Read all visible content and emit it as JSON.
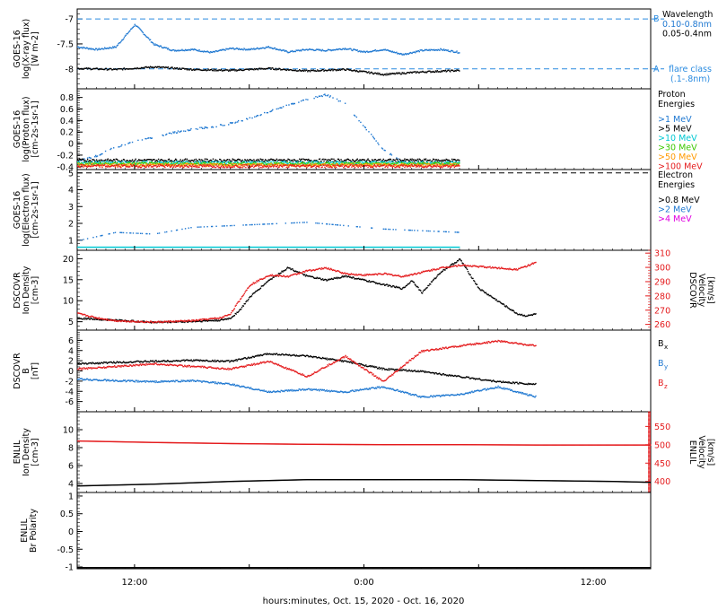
{
  "colors": {
    "black": "#000000",
    "blue": "#1f78d1",
    "red": "#e41a1c",
    "cyan": "#00c8d2",
    "green": "#3cc800",
    "orange": "#ff9a00",
    "magenta": "#e000e0",
    "dash_blue": "#2a8be0"
  },
  "xaxis": {
    "ticks": [
      "12:00",
      "0:00",
      "12:00"
    ],
    "label": "hours:minutes, Oct. 15, 2020 - Oct. 16, 2020"
  },
  "chart_data": [
    {
      "type": "scatter",
      "id": "xray",
      "ylabel": [
        "GOES-16",
        "log(X-ray flux)",
        "[W m-2]"
      ],
      "ylim": [
        -8.4,
        -6.8
      ],
      "yticks": [
        -7.0,
        -7.5,
        -8.0
      ],
      "legend_title": "Wavelength",
      "legend": [
        {
          "label": "0.10-0.8nm",
          "color": "#1f78d1"
        },
        {
          "label": "0.05-0.4nm",
          "color": "#000000"
        }
      ],
      "reference_lines": [
        {
          "value": -7.0,
          "letter": "B"
        },
        {
          "value": -8.0,
          "letter": "A",
          "label": "flare class",
          "sublabel": "(.1-.8nm)"
        }
      ],
      "series": [
        {
          "color": "#1f78d1",
          "x": [
            0,
            2,
            4,
            6,
            7,
            8,
            10,
            12,
            14,
            16,
            18,
            20,
            22,
            24,
            26,
            28,
            30,
            32,
            34,
            36,
            38,
            40
          ],
          "y": [
            -7.55,
            -7.6,
            -7.55,
            -7.1,
            -7.3,
            -7.5,
            -7.62,
            -7.6,
            -7.66,
            -7.58,
            -7.6,
            -7.55,
            -7.65,
            -7.6,
            -7.62,
            -7.58,
            -7.65,
            -7.6,
            -7.7,
            -7.62,
            -7.6,
            -7.66
          ]
        },
        {
          "color": "#000000",
          "x": [
            0,
            4,
            8,
            12,
            16,
            20,
            24,
            28,
            32,
            36,
            40
          ],
          "y": [
            -7.98,
            -8.0,
            -7.95,
            -8.0,
            -8.02,
            -7.98,
            -8.03,
            -8.0,
            -8.1,
            -8.05,
            -8.02
          ]
        }
      ]
    },
    {
      "type": "scatter",
      "id": "proton",
      "ylabel": [
        "GOES-16",
        "log(Proton flux)",
        "[cm-2s-1sr-1]"
      ],
      "ylim": [
        -0.45,
        0.95
      ],
      "yticks": [
        0.8,
        0.6,
        0.4,
        0.2,
        0.0,
        -0.2,
        -0.4
      ],
      "legend_title": "Proton Energies",
      "legend": [
        {
          "label": ">1 MeV",
          "color": "#1f78d1"
        },
        {
          "label": ">5 MeV",
          "color": "#000000"
        },
        {
          "label": ">10 MeV",
          "color": "#00c8d2"
        },
        {
          "label": ">30 MeV",
          "color": "#3cc800"
        },
        {
          "label": ">50 MeV",
          "color": "#ff9a00"
        },
        {
          "label": ">100 MeV",
          "color": "#e41a1c"
        }
      ],
      "series": [
        {
          "color": "#1f78d1",
          "x": [
            0,
            2,
            4,
            6,
            8,
            10,
            12,
            14,
            16,
            18,
            20,
            22,
            24,
            26,
            28,
            29,
            30,
            32,
            34,
            36,
            38,
            40
          ],
          "y": [
            -0.3,
            -0.2,
            -0.05,
            0.05,
            0.12,
            0.2,
            0.26,
            0.3,
            0.36,
            0.45,
            0.56,
            0.68,
            0.78,
            0.86,
            0.7,
            0.5,
            0.3,
            -0.1,
            -0.3,
            -0.35,
            -0.34,
            -0.36
          ]
        },
        {
          "color": "#000000",
          "x": [
            0,
            40
          ],
          "y": [
            -0.28,
            -0.28
          ]
        },
        {
          "color": "#00c8d2",
          "x": [
            0,
            40
          ],
          "y": [
            -0.32,
            -0.32
          ]
        },
        {
          "color": "#3cc800",
          "x": [
            0,
            40
          ],
          "y": [
            -0.34,
            -0.34
          ]
        },
        {
          "color": "#ff9a00",
          "x": [
            0,
            40
          ],
          "y": [
            -0.36,
            -0.36
          ]
        },
        {
          "color": "#e41a1c",
          "x": [
            0,
            40
          ],
          "y": [
            -0.38,
            -0.38
          ]
        }
      ]
    },
    {
      "type": "scatter",
      "id": "electron",
      "ylabel": [
        "GOES-16",
        "log(Electron flux)",
        "[cm-2s-1sr-1]"
      ],
      "ylim": [
        0.4,
        5.2
      ],
      "yticks": [
        5,
        4,
        3,
        2,
        1
      ],
      "legend_title": "Electron Energies",
      "legend": [
        {
          "label": ">0.8 MeV",
          "color": "#000000"
        },
        {
          "label": ">2 MeV",
          "color": "#1f78d1"
        },
        {
          "label": ">4 MeV",
          "color": "#e000e0"
        }
      ],
      "reference_lines": [
        {
          "value": 5.0
        }
      ],
      "series": [
        {
          "color": "#1f78d1",
          "x": [
            0,
            4,
            8,
            12,
            16,
            20,
            24,
            28,
            32,
            36,
            40
          ],
          "y": [
            1.0,
            1.5,
            1.4,
            1.8,
            1.9,
            2.0,
            2.1,
            1.9,
            1.7,
            1.6,
            1.5
          ]
        },
        {
          "color": "#00c8d2",
          "x": [
            0,
            40
          ],
          "y": [
            0.62,
            0.62
          ]
        }
      ]
    },
    {
      "type": "scatter",
      "id": "dscovr_density",
      "ylabel": [
        "DSCOVR",
        "Ion Density",
        "[cm-3]"
      ],
      "ylim": [
        3,
        22
      ],
      "yticks": [
        20,
        15,
        10,
        5
      ],
      "y2label": [
        "DSCOVR",
        "Velocity",
        "[km/s]"
      ],
      "y2lim": [
        256,
        312
      ],
      "y2ticks": [
        310,
        300,
        290,
        280,
        270,
        260
      ],
      "series": [
        {
          "color": "#000000",
          "axis": "left",
          "x": [
            0,
            4,
            8,
            12,
            15,
            16,
            17,
            18,
            19,
            20,
            22,
            24,
            26,
            28,
            30,
            32,
            34,
            35,
            36,
            38,
            40,
            42,
            44,
            46,
            47,
            48
          ],
          "y": [
            6,
            5.5,
            5,
            5.2,
            5.5,
            6,
            8,
            11,
            13,
            15,
            18,
            16,
            15,
            16,
            15,
            14,
            13,
            15,
            12,
            17,
            20,
            13,
            10,
            7,
            6.5,
            7
          ]
        },
        {
          "color": "#e41a1c",
          "axis": "right",
          "x": [
            0,
            2,
            4,
            8,
            12,
            15,
            16,
            17,
            18,
            20,
            22,
            24,
            26,
            28,
            30,
            32,
            34,
            36,
            38,
            40,
            42,
            44,
            46,
            48
          ],
          "y": [
            268,
            265,
            263,
            262,
            263,
            265,
            268,
            278,
            288,
            295,
            294,
            298,
            300,
            296,
            295,
            296,
            294,
            297,
            300,
            302,
            301,
            300,
            299,
            304
          ]
        }
      ]
    },
    {
      "type": "scatter",
      "id": "dscovr_b",
      "ylabel": [
        "DSCOVR",
        "B",
        "[nT]"
      ],
      "ylim": [
        -8,
        8
      ],
      "yticks": [
        6,
        4,
        2,
        0,
        -2,
        -4,
        -6
      ],
      "legend": [
        {
          "label": "Bx",
          "color": "#000000"
        },
        {
          "label": "By",
          "color": "#1f78d1"
        },
        {
          "label": "Bz",
          "color": "#e41a1c"
        }
      ],
      "series": [
        {
          "color": "#000000",
          "x": [
            0,
            4,
            8,
            12,
            16,
            20,
            24,
            28,
            32,
            36,
            40,
            44,
            48
          ],
          "y": [
            1.5,
            1.8,
            2.0,
            2.2,
            2.0,
            3.5,
            3.0,
            2.0,
            0.5,
            0,
            -1.0,
            -2.0,
            -2.5
          ]
        },
        {
          "color": "#1f78d1",
          "x": [
            0,
            4,
            8,
            12,
            16,
            20,
            24,
            28,
            32,
            36,
            40,
            44,
            48
          ],
          "y": [
            -1.5,
            -1.8,
            -2.0,
            -1.8,
            -2.5,
            -4.0,
            -3.5,
            -4.0,
            -3.0,
            -5.0,
            -4.5,
            -3.0,
            -5.0
          ]
        },
        {
          "color": "#e41a1c",
          "x": [
            0,
            4,
            8,
            12,
            16,
            20,
            24,
            28,
            32,
            36,
            40,
            44,
            48
          ],
          "y": [
            0.5,
            1.0,
            1.5,
            1.0,
            0.5,
            2.0,
            -1.0,
            3.0,
            -2.0,
            4.0,
            5.0,
            6.0,
            5.0
          ]
        }
      ]
    },
    {
      "type": "scatter",
      "id": "enlil_density",
      "ylabel": [
        "ENLIL",
        "Ion Density",
        "[cm-3]"
      ],
      "ylim": [
        3,
        12
      ],
      "yticks": [
        10,
        8,
        6,
        4
      ],
      "y2label": [
        "ENLIL",
        "Velocity",
        "[km/s]"
      ],
      "y2lim": [
        370,
        590
      ],
      "y2ticks": [
        550,
        500,
        450,
        400
      ],
      "series": [
        {
          "color": "#000000",
          "axis": "left",
          "x": [
            0,
            8,
            16,
            24,
            32,
            40,
            48,
            56,
            60
          ],
          "y": [
            3.8,
            4.0,
            4.3,
            4.5,
            4.5,
            4.5,
            4.4,
            4.3,
            4.2
          ]
        },
        {
          "color": "#e41a1c",
          "axis": "right",
          "x": [
            0,
            8,
            16,
            24,
            32,
            40,
            48,
            56,
            60
          ],
          "y": [
            512,
            508,
            505,
            503,
            502,
            502,
            501,
            501,
            501
          ]
        }
      ]
    },
    {
      "type": "scatter",
      "id": "enlil_polarity",
      "ylabel": [
        "ENLIL",
        "Br Polarity"
      ],
      "ylim": [
        -1.05,
        1.1
      ],
      "yticks": [
        1.0,
        0.5,
        0.0,
        -0.5,
        -1.0
      ],
      "series": [
        {
          "color": "#000000",
          "x": [
            0,
            60
          ],
          "y": [
            -1.0,
            -1.0
          ]
        }
      ]
    }
  ]
}
